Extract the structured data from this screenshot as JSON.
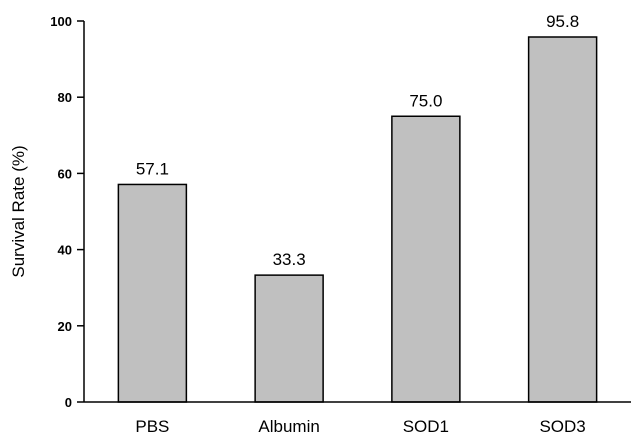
{
  "chart_data": {
    "type": "bar",
    "title": "",
    "xlabel": "",
    "ylabel": "Survival Rate (%)",
    "categories": [
      "PBS",
      "Albumin",
      "SOD1",
      "SOD3"
    ],
    "values": [
      57.1,
      33.3,
      75.0,
      95.8
    ],
    "value_labels": [
      "57.1",
      "33.3",
      "75.0",
      "95.8"
    ],
    "ylim": [
      0,
      100
    ],
    "yticks": [
      0,
      20,
      40,
      60,
      80,
      100
    ],
    "ytick_labels": [
      "0",
      "20",
      "40",
      "60",
      "80",
      "100"
    ],
    "grid": false,
    "legend": "none",
    "bar_color": "#c0c0c0",
    "bar_edge_color": "#000000"
  }
}
